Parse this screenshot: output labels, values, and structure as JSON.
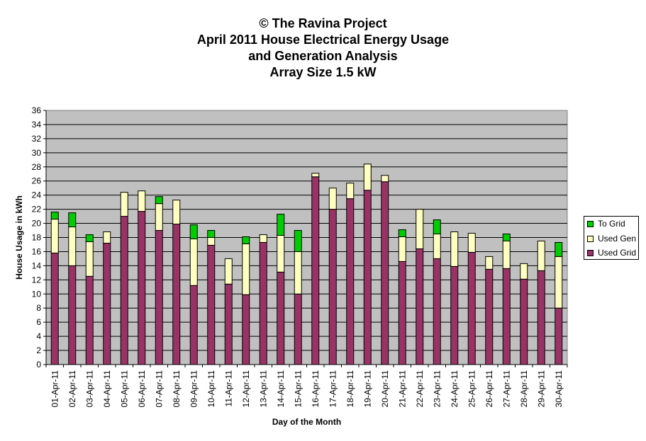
{
  "title": {
    "line1": "© The Ravina Project",
    "line2": "April 2011 House Electrical Energy Usage",
    "line3": "and Generation Analysis",
    "line4": "Array Size 1.5 kW"
  },
  "chart_data": {
    "type": "bar",
    "stacked": true,
    "xlabel": "Day of the Month",
    "ylabel": "House Usage in kWh",
    "ylim": [
      0,
      36
    ],
    "ytick_step": 2,
    "grid": true,
    "legend_position": "right",
    "categories": [
      "01-Apr-11",
      "02-Apr-11",
      "03-Apr-11",
      "04-Apr-11",
      "05-Apr-11",
      "06-Apr-11",
      "07-Apr-11",
      "08-Apr-11",
      "09-Apr-11",
      "10-Apr-11",
      "11-Apr-11",
      "12-Apr-11",
      "13-Apr-11",
      "14-Apr-11",
      "15-Apr-11",
      "16-Apr-11",
      "17-Apr-11",
      "18-Apr-11",
      "19-Apr-11",
      "20-Apr-11",
      "21-Apr-11",
      "22-Apr-11",
      "23-Apr-11",
      "24-Apr-11",
      "25-Apr-11",
      "26-Apr-11",
      "27-Apr-11",
      "28-Apr-11",
      "29-Apr-11",
      "30-Apr-11"
    ],
    "series": [
      {
        "name": "Used Grid",
        "color": "#993366",
        "values": [
          15.8,
          14.0,
          12.5,
          17.2,
          21.0,
          21.7,
          19.0,
          19.9,
          11.2,
          16.9,
          11.4,
          9.9,
          17.3,
          13.1,
          10.0,
          26.6,
          22.0,
          23.5,
          24.7,
          25.9,
          14.6,
          16.4,
          15.0,
          13.9,
          15.9,
          13.5,
          13.6,
          12.1,
          13.3,
          8.0
        ]
      },
      {
        "name": "Used Gen",
        "color": "#ffffc0",
        "values": [
          4.8,
          5.5,
          4.9,
          1.6,
          3.4,
          2.9,
          3.8,
          3.4,
          6.6,
          1.1,
          3.6,
          7.2,
          1.1,
          5.2,
          6.0,
          0.5,
          3.0,
          2.2,
          3.7,
          0.9,
          3.5,
          5.6,
          3.5,
          4.9,
          2.7,
          1.8,
          3.9,
          2.2,
          4.2,
          7.3
        ]
      },
      {
        "name": "To Grid",
        "color": "#00cc00",
        "values": [
          1.0,
          2.0,
          1.0,
          0,
          0,
          0,
          1.0,
          0,
          2.0,
          1.0,
          0,
          1.0,
          0,
          3.0,
          3.0,
          0,
          0,
          0,
          0,
          0,
          1.0,
          0,
          2.0,
          0,
          0,
          0,
          1.0,
          0,
          0,
          2.0
        ]
      }
    ]
  }
}
